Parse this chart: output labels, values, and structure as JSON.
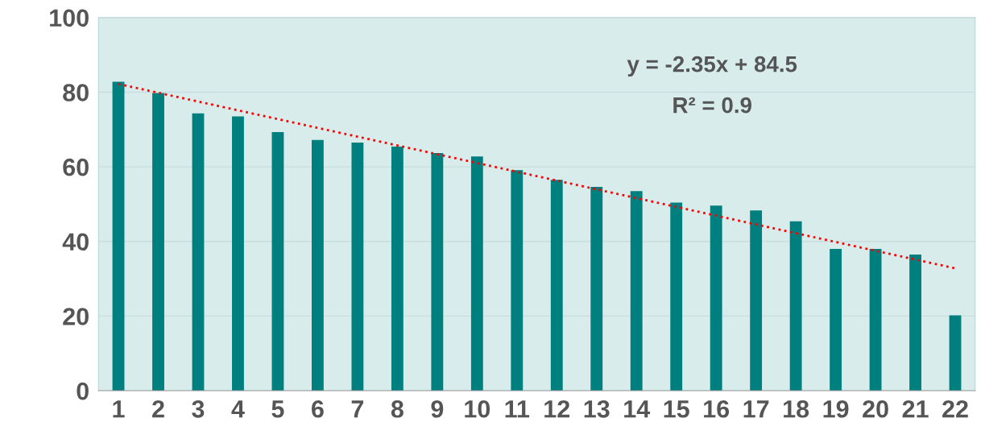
{
  "chart_data": {
    "type": "bar",
    "categories": [
      "1",
      "2",
      "3",
      "4",
      "5",
      "6",
      "7",
      "8",
      "9",
      "10",
      "11",
      "12",
      "13",
      "14",
      "15",
      "16",
      "17",
      "18",
      "19",
      "20",
      "21",
      "22"
    ],
    "series": [
      {
        "color": "#007f7f",
        "values": [
          82.8,
          79.8,
          74.3,
          73.5,
          69.3,
          67.2,
          66.5,
          65.4,
          63.7,
          62.8,
          59.1,
          56.5,
          54.6,
          53.5,
          50.4,
          49.6,
          48.3,
          45.4,
          38.0,
          38.0,
          36.5,
          20.2
        ]
      },
      {
        "type": "line",
        "color": "#ff0000",
        "line_style": "dotted",
        "x": [
          "1",
          "22"
        ],
        "values": [
          82.2,
          32.8
        ]
      }
    ],
    "ylim": [
      0,
      100
    ],
    "yticks": [
      0,
      20,
      40,
      60,
      80,
      100
    ],
    "grid": "y",
    "legend": false,
    "annotations": [
      "y = -2.35x + 84.5",
      "R² = 0.9"
    ]
  }
}
